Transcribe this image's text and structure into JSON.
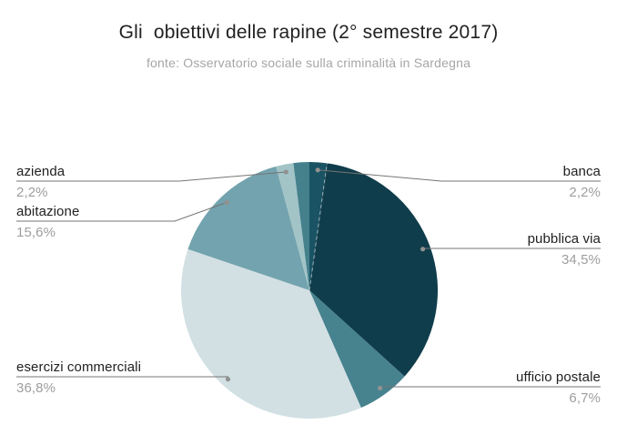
{
  "chart_title": "Gli  obiettivi delle rapine (2° semestre 2017)",
  "chart_subtitle": "fonte: Osservatorio sociale sulla criminalità in Sardegna",
  "colors": {
    "background": "#ffffff",
    "title_text": "#212121",
    "subtitle_text": "#a6a6a6",
    "label_text": "#212121",
    "percent_text": "#9e9e9e",
    "leader_line": "#757575",
    "leader_dot": "#919191"
  },
  "chart_data": {
    "type": "pie",
    "title": "Gli  obiettivi delle rapine (2° semestre 2017)",
    "subtitle": "fonte: Osservatorio sociale sulla criminalità in Sardegna",
    "unit": "%",
    "legend_position": "labeled-callouts",
    "start_angle_deg": 0,
    "clockwise": true,
    "slices": [
      {
        "label": "banca",
        "value": 2.2,
        "pct_label": "2,2%",
        "color": "#1a5364"
      },
      {
        "label": "pubblica via",
        "value": 34.5,
        "pct_label": "34,5%",
        "color": "#103d4b"
      },
      {
        "label": "ufficio postale",
        "value": 6.7,
        "pct_label": "6,7%",
        "color": "#47828f"
      },
      {
        "label": "esercizi commerciali",
        "value": 36.8,
        "pct_label": "36,8%",
        "color": "#d2e0e3"
      },
      {
        "label": "abitazione",
        "value": 15.6,
        "pct_label": "15,6%",
        "color": "#73a3ae"
      },
      {
        "label": "azienda",
        "value": 2.2,
        "pct_label": "2,2%",
        "color": "#a2c4c7"
      },
      {
        "label": "",
        "value": 2.0,
        "pct_label": "",
        "color": "#45808d"
      }
    ]
  }
}
